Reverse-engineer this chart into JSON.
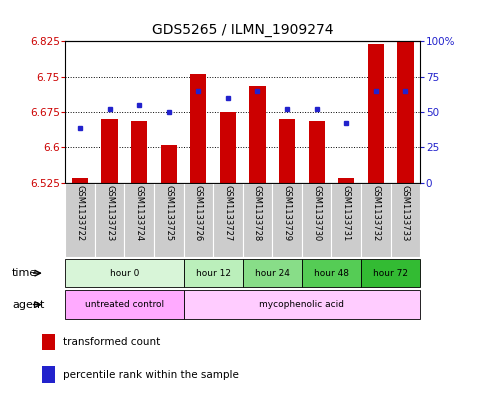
{
  "title": "GDS5265 / ILMN_1909274",
  "samples": [
    "GSM1133722",
    "GSM1133723",
    "GSM1133724",
    "GSM1133725",
    "GSM1133726",
    "GSM1133727",
    "GSM1133728",
    "GSM1133729",
    "GSM1133730",
    "GSM1133731",
    "GSM1133732",
    "GSM1133733"
  ],
  "bar_values": [
    6.535,
    6.66,
    6.655,
    6.605,
    6.755,
    6.675,
    6.73,
    6.66,
    6.655,
    6.535,
    6.82,
    6.825
  ],
  "dot_pct": [
    0.39,
    0.52,
    0.55,
    0.5,
    0.65,
    0.6,
    0.65,
    0.52,
    0.52,
    0.42,
    0.65,
    0.65
  ],
  "ylim": [
    6.525,
    6.825
  ],
  "yticks": [
    6.525,
    6.6,
    6.675,
    6.75,
    6.825
  ],
  "ytick_labels": [
    "6.525",
    "6.6",
    "6.675",
    "6.75",
    "6.825"
  ],
  "y2ticks": [
    0,
    25,
    50,
    75,
    100
  ],
  "y2tick_labels": [
    "0",
    "25",
    "50",
    "75",
    "100%"
  ],
  "bar_color": "#cc0000",
  "dot_color": "#2222cc",
  "bar_base": 6.525,
  "grid_yticks": [
    6.6,
    6.675,
    6.75
  ],
  "time_groups": [
    {
      "label": "hour 0",
      "start": 0,
      "end": 4,
      "color": "#d8f5d8"
    },
    {
      "label": "hour 12",
      "start": 4,
      "end": 6,
      "color": "#bbefbb"
    },
    {
      "label": "hour 24",
      "start": 6,
      "end": 8,
      "color": "#88dd88"
    },
    {
      "label": "hour 48",
      "start": 8,
      "end": 10,
      "color": "#55cc55"
    },
    {
      "label": "hour 72",
      "start": 10,
      "end": 12,
      "color": "#33bb33"
    }
  ],
  "agent_groups": [
    {
      "label": "untreated control",
      "start": 0,
      "end": 4,
      "color": "#ffaaff"
    },
    {
      "label": "mycophenolic acid",
      "start": 4,
      "end": 12,
      "color": "#ffccff"
    }
  ],
  "legend_bar_label": "transformed count",
  "legend_dot_label": "percentile rank within the sample",
  "sample_bg": "#cccccc",
  "title_fontsize": 10,
  "tick_fontsize": 7.5,
  "sample_fontsize": 6,
  "row_fontsize": 8,
  "legend_fontsize": 7.5
}
